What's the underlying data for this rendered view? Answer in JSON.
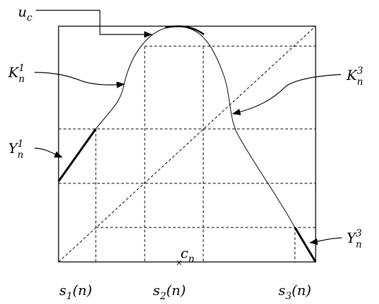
{
  "labels": {
    "u_c": {
      "base": "u",
      "sub": "c"
    },
    "K1": {
      "base": "K",
      "sub": "n",
      "sup": "1"
    },
    "K3": {
      "base": "K",
      "sub": "n",
      "sup": "3"
    },
    "Y1": {
      "base": "Υ",
      "sub": "n",
      "sup": "1"
    },
    "Y3": {
      "base": "Υ",
      "sub": "n",
      "sup": "3"
    },
    "c_n": {
      "base": "c",
      "sub": "n"
    },
    "s1": {
      "base": "s",
      "sub": "1",
      "suffix": "(n)"
    },
    "s2": {
      "base": "s",
      "sub": "2",
      "suffix": "(n)"
    },
    "s3": {
      "base": "s",
      "sub": "3",
      "suffix": "(n)"
    }
  }
}
